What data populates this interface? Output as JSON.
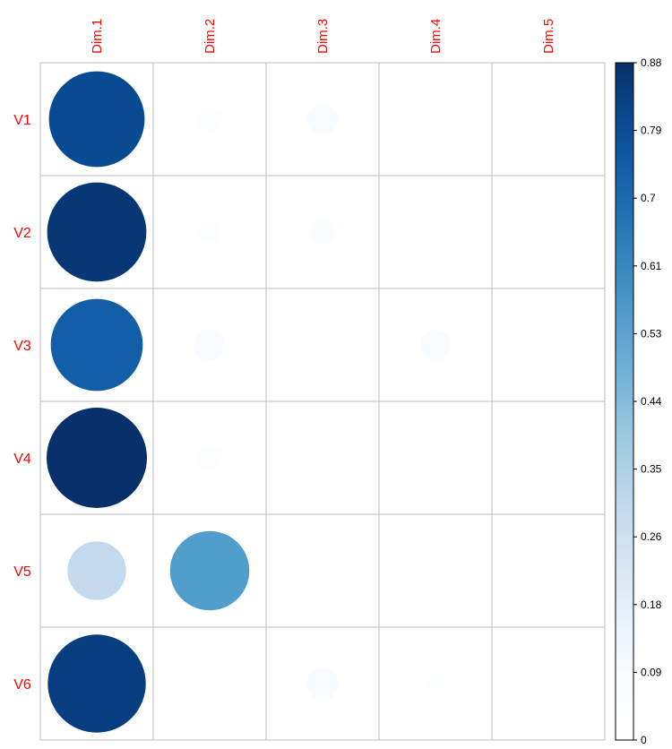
{
  "chart_data": {
    "type": "heatmap",
    "glyph": "circle",
    "columns": [
      "Dim.1",
      "Dim.2",
      "Dim.3",
      "Dim.4",
      "Dim.5"
    ],
    "rows": [
      "V1",
      "V2",
      "V3",
      "V4",
      "V5",
      "V6"
    ],
    "values": [
      [
        0.8,
        0.05,
        0.08,
        0.01,
        0.0
      ],
      [
        0.86,
        0.04,
        0.06,
        0.0,
        0.0
      ],
      [
        0.74,
        0.09,
        0.03,
        0.08,
        0.0
      ],
      [
        0.88,
        0.05,
        0.02,
        0.0,
        0.01
      ],
      [
        0.3,
        0.55,
        0.02,
        0.01,
        0.0
      ],
      [
        0.84,
        0.0,
        0.09,
        0.03,
        0.0
      ]
    ],
    "colorbar": {
      "ticks": [
        "0",
        "0.09",
        "0.18",
        "0.26",
        "0.35",
        "0.44",
        "0.53",
        "0.61",
        "0.7",
        "0.79",
        "0.88"
      ],
      "min": 0,
      "max": 0.88
    },
    "label_color": "#ff0000",
    "grid_color": "#bebebe",
    "color_stops": [
      "#ffffff",
      "#f7fbff",
      "#deebf7",
      "#c6dbef",
      "#9ecae1",
      "#6baed6",
      "#4292c6",
      "#2171b5",
      "#08519c",
      "#08306b"
    ]
  }
}
